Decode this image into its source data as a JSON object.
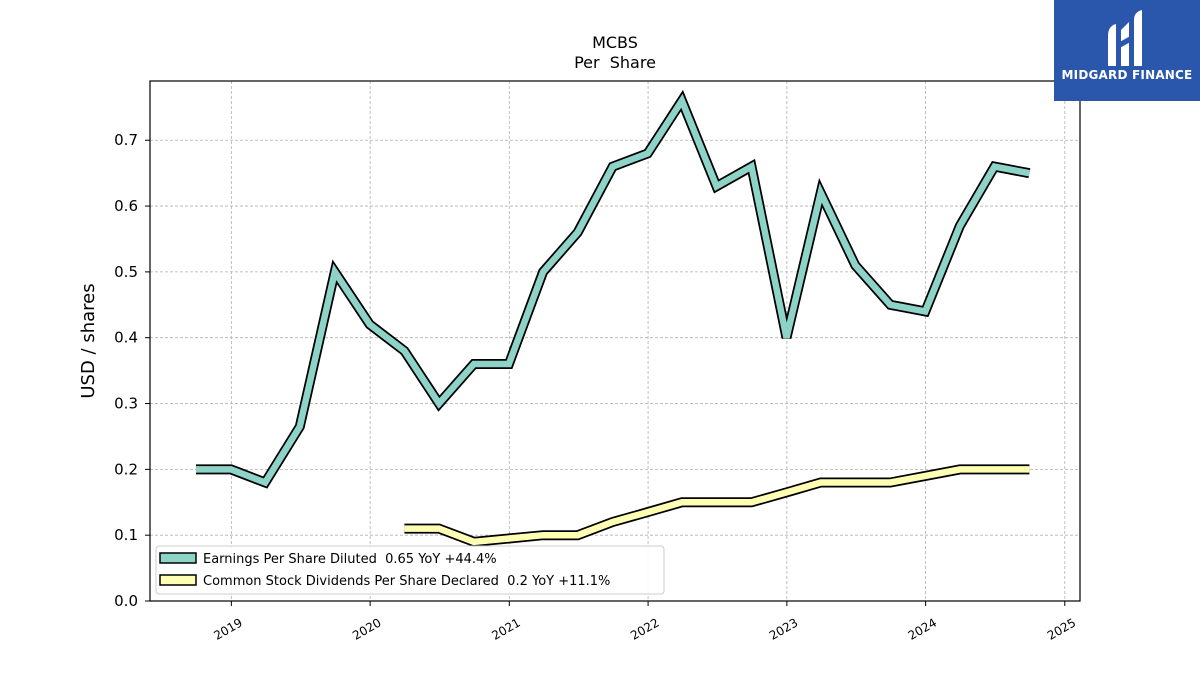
{
  "chart_data": {
    "type": "line",
    "title": "MCBS",
    "subtitle": "Per  Share",
    "ylabel": "USD / shares",
    "xlabel": "",
    "ylim": [
      0,
      0.79
    ],
    "xlim": [
      "2018-06-01",
      "2025-02-10"
    ],
    "grid": true,
    "legend_position": "lower-left",
    "y_ticks": [
      "0.0",
      "0.1",
      "0.2",
      "0.3",
      "0.4",
      "0.5",
      "0.6",
      "0.7"
    ],
    "x_ticks": [
      "2019",
      "2020",
      "2021",
      "2022",
      "2023",
      "2024",
      "2025"
    ],
    "series": [
      {
        "name": "Earnings Per Share Diluted",
        "legend_label": "Earnings Per Share Diluted  0.65 YoY +44.4%",
        "color": "#8dd3c7",
        "points": [
          [
            "2018-09-30",
            0.2
          ],
          [
            "2018-12-31",
            0.2
          ],
          [
            "2019-03-31",
            0.18
          ],
          [
            "2019-06-30",
            0.265
          ],
          [
            "2019-09-30",
            0.5
          ],
          [
            "2019-12-31",
            0.42
          ],
          [
            "2020-03-31",
            0.38
          ],
          [
            "2020-06-30",
            0.3
          ],
          [
            "2020-09-30",
            0.36
          ],
          [
            "2020-12-31",
            0.36
          ],
          [
            "2021-03-31",
            0.5
          ],
          [
            "2021-06-30",
            0.56
          ],
          [
            "2021-09-30",
            0.66
          ],
          [
            "2021-12-31",
            0.68
          ],
          [
            "2022-03-31",
            0.76
          ],
          [
            "2022-06-30",
            0.63
          ],
          [
            "2022-09-30",
            0.66
          ],
          [
            "2022-12-31",
            0.4
          ],
          [
            "2023-03-31",
            0.62
          ],
          [
            "2023-06-30",
            0.51
          ],
          [
            "2023-09-30",
            0.45
          ],
          [
            "2023-12-31",
            0.44
          ],
          [
            "2024-03-31",
            0.57
          ],
          [
            "2024-06-30",
            0.66
          ],
          [
            "2024-09-30",
            0.65
          ]
        ]
      },
      {
        "name": "Common Stock Dividends Per Share Declared",
        "legend_label": "Common Stock Dividends Per Share Declared  0.2 YoY +11.1%",
        "color": "#ffffb3",
        "points": [
          [
            "2020-03-31",
            0.11
          ],
          [
            "2020-06-30",
            0.11
          ],
          [
            "2020-09-30",
            0.09
          ],
          [
            "2020-12-31",
            0.095
          ],
          [
            "2021-03-31",
            0.1
          ],
          [
            "2021-06-30",
            0.1
          ],
          [
            "2021-09-30",
            0.12
          ],
          [
            "2021-12-31",
            0.135
          ],
          [
            "2022-03-31",
            0.15
          ],
          [
            "2022-06-30",
            0.15
          ],
          [
            "2022-09-30",
            0.15
          ],
          [
            "2022-12-31",
            0.165
          ],
          [
            "2023-03-31",
            0.18
          ],
          [
            "2023-06-30",
            0.18
          ],
          [
            "2023-09-30",
            0.18
          ],
          [
            "2023-12-31",
            0.19
          ],
          [
            "2024-03-31",
            0.2
          ],
          [
            "2024-06-30",
            0.2
          ],
          [
            "2024-09-30",
            0.2
          ]
        ]
      }
    ]
  },
  "logo": {
    "text": "MIDGARD FINANCE",
    "background": "#2a57ac"
  }
}
